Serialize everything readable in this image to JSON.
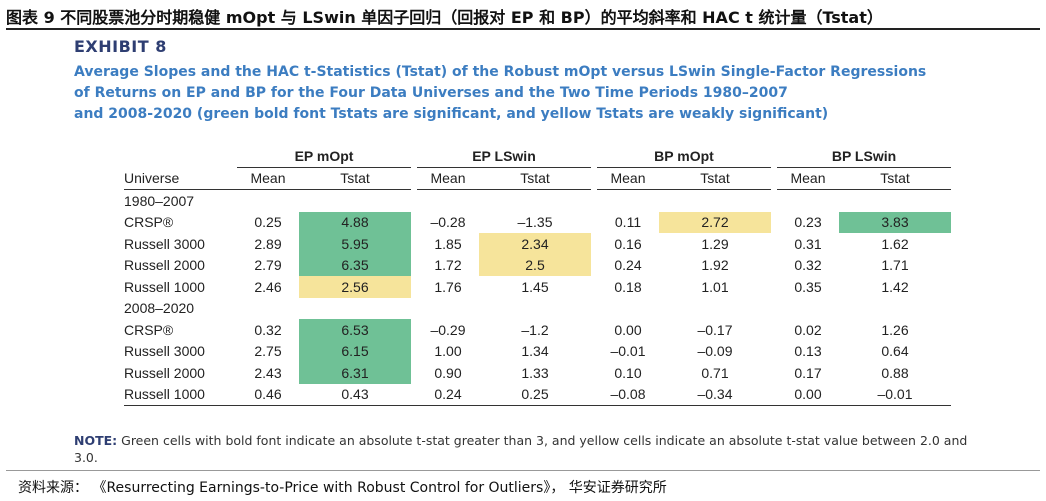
{
  "caption": "图表 9  不同股票池分时期稳健 mOpt 与 LSwin 单因子回归（回报对 EP 和 BP）的平均斜率和 HAC t 统计量（Tstat）",
  "exhibit": {
    "label": "EXHIBIT 8",
    "title_lines": [
      "Average Slopes and the HAC t-Statistics (Tstat) of the Robust mOpt versus LSwin Single-Factor Regressions",
      "of Returns on EP and BP for the Four Data Universes and the Two Time Periods 1980–2007",
      "and 2008-2020 (green bold font Tstats are significant, and yellow Tstats are weakly significant)"
    ]
  },
  "table": {
    "groups": [
      "EP mOpt",
      "EP LSwin",
      "BP mOpt",
      "BP LSwin"
    ],
    "universe_header": "Universe",
    "mean_header": "Mean",
    "tstat_header": "Tstat",
    "periods": [
      {
        "label": "1980–2007",
        "rows": [
          {
            "universe": "CRSP®",
            "cells": [
              {
                "mean": "0.25",
                "tstat": "4.88",
                "hl": "green"
              },
              {
                "mean": "–0.28",
                "tstat": "–1.35",
                "hl": ""
              },
              {
                "mean": "0.11",
                "tstat": "2.72",
                "hl": "yellow"
              },
              {
                "mean": "0.23",
                "tstat": "3.83",
                "hl": "green"
              }
            ]
          },
          {
            "universe": "Russell 3000",
            "cells": [
              {
                "mean": "2.89",
                "tstat": "5.95",
                "hl": "green"
              },
              {
                "mean": "1.85",
                "tstat": "2.34",
                "hl": "yellow"
              },
              {
                "mean": "0.16",
                "tstat": "1.29",
                "hl": ""
              },
              {
                "mean": "0.31",
                "tstat": "1.62",
                "hl": ""
              }
            ]
          },
          {
            "universe": "Russell 2000",
            "cells": [
              {
                "mean": "2.79",
                "tstat": "6.35",
                "hl": "green"
              },
              {
                "mean": "1.72",
                "tstat": "2.5",
                "hl": "yellow"
              },
              {
                "mean": "0.24",
                "tstat": "1.92",
                "hl": ""
              },
              {
                "mean": "0.32",
                "tstat": "1.71",
                "hl": ""
              }
            ]
          },
          {
            "universe": "Russell 1000",
            "cells": [
              {
                "mean": "2.46",
                "tstat": "2.56",
                "hl": "yellow"
              },
              {
                "mean": "1.76",
                "tstat": "1.45",
                "hl": ""
              },
              {
                "mean": "0.18",
                "tstat": "1.01",
                "hl": ""
              },
              {
                "mean": "0.35",
                "tstat": "1.42",
                "hl": ""
              }
            ]
          }
        ]
      },
      {
        "label": "2008–2020",
        "rows": [
          {
            "universe": "CRSP®",
            "cells": [
              {
                "mean": "0.32",
                "tstat": "6.53",
                "hl": "green"
              },
              {
                "mean": "–0.29",
                "tstat": "–1.2",
                "hl": ""
              },
              {
                "mean": "0.00",
                "tstat": "–0.17",
                "hl": ""
              },
              {
                "mean": "0.02",
                "tstat": "1.26",
                "hl": ""
              }
            ]
          },
          {
            "universe": "Russell 3000",
            "cells": [
              {
                "mean": "2.75",
                "tstat": "6.15",
                "hl": "green"
              },
              {
                "mean": "1.00",
                "tstat": "1.34",
                "hl": ""
              },
              {
                "mean": "–0.01",
                "tstat": "–0.09",
                "hl": ""
              },
              {
                "mean": "0.13",
                "tstat": "0.64",
                "hl": ""
              }
            ]
          },
          {
            "universe": "Russell 2000",
            "cells": [
              {
                "mean": "2.43",
                "tstat": "6.31",
                "hl": "green"
              },
              {
                "mean": "0.90",
                "tstat": "1.33",
                "hl": ""
              },
              {
                "mean": "0.10",
                "tstat": "0.71",
                "hl": ""
              },
              {
                "mean": "0.17",
                "tstat": "0.88",
                "hl": ""
              }
            ]
          },
          {
            "universe": "Russell 1000",
            "cells": [
              {
                "mean": "0.46",
                "tstat": "0.43",
                "hl": ""
              },
              {
                "mean": "0.24",
                "tstat": "0.25",
                "hl": ""
              },
              {
                "mean": "–0.08",
                "tstat": "–0.34",
                "hl": ""
              },
              {
                "mean": "0.00",
                "tstat": "–0.01",
                "hl": ""
              }
            ]
          }
        ]
      }
    ]
  },
  "note": {
    "label": "NOTE:",
    "text": " Green cells with bold font indicate an absolute t-stat greater than 3, and yellow cells indicate an absolute t-stat value between 2.0 and 3.0."
  },
  "source": "资料来源：  《Resurrecting Earnings-to-Price with Robust Control for Outliers》， 华安证券研究所",
  "colors": {
    "green": "#6fc196",
    "yellow": "#f6e49b",
    "title_blue": "#3c7dc1",
    "navy": "#2e3e72"
  }
}
